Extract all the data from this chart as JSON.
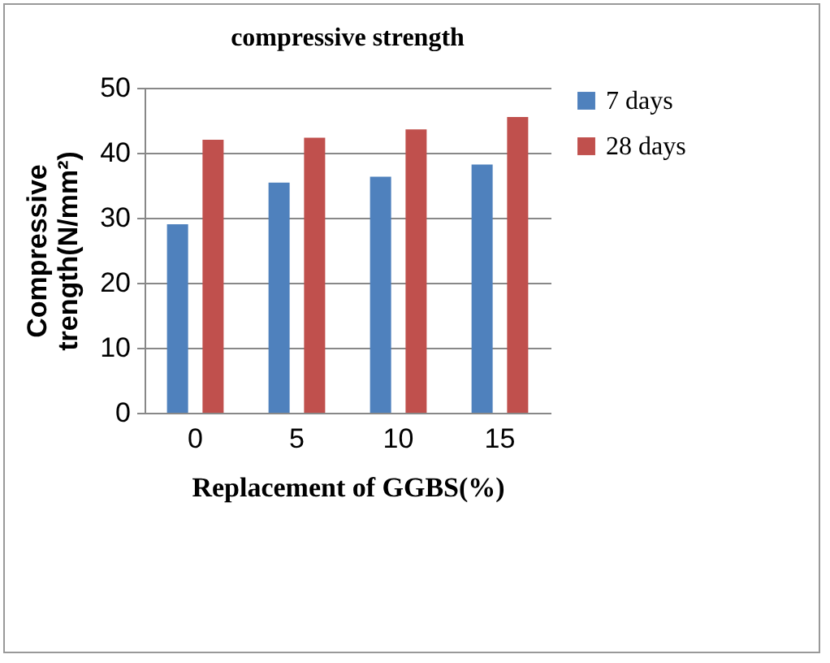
{
  "chart_data": {
    "type": "bar",
    "title": "compressive strength",
    "xlabel": "Replacement of GGBS(%)",
    "ylabel": "Compressive\ntrength(N/mm²)",
    "categories": [
      "0",
      "5",
      "10",
      "15"
    ],
    "series": [
      {
        "name": "7 days",
        "color": "#4f81bd",
        "values": [
          29.0,
          35.4,
          36.3,
          38.2
        ]
      },
      {
        "name": "28 days",
        "color": "#c0504d",
        "values": [
          42.0,
          42.3,
          43.6,
          45.5
        ]
      }
    ],
    "ylim": [
      0,
      50
    ],
    "yticks": [
      0,
      10,
      20,
      30,
      40,
      50
    ],
    "grid": "y",
    "legend": "right"
  }
}
